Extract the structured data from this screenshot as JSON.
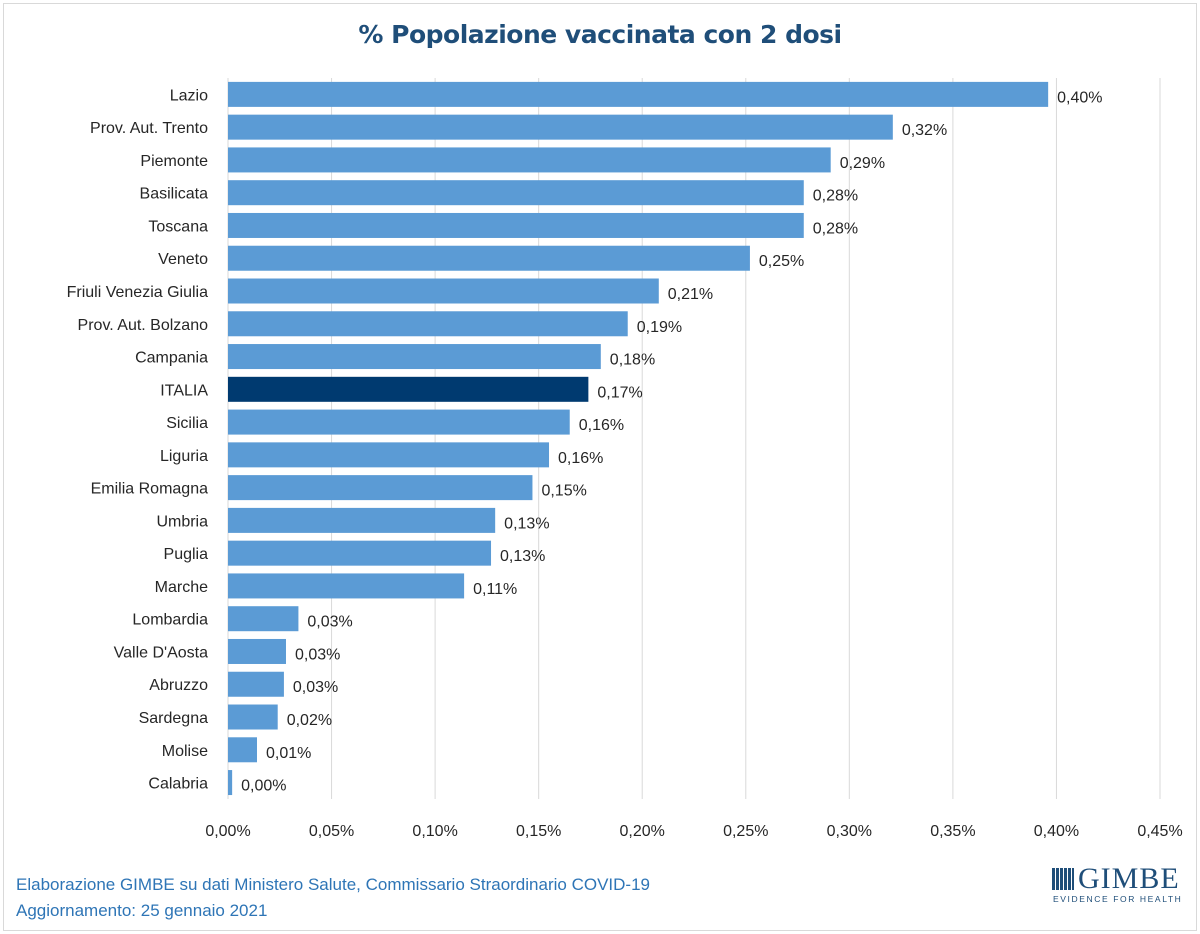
{
  "chart_data": {
    "type": "bar",
    "orientation": "horizontal",
    "title": "% Popolazione  vaccinata con 2 dosi",
    "categories": [
      "Lazio",
      "Prov. Aut. Trento",
      "Piemonte",
      "Basilicata",
      "Toscana",
      "Veneto",
      "Friuli Venezia Giulia",
      "Prov. Aut. Bolzano",
      "Campania",
      "ITALIA",
      "Sicilia",
      "Liguria",
      "Emilia Romagna",
      "Umbria",
      "Puglia",
      "Marche",
      "Lombardia",
      "Valle D'Aosta",
      "Abruzzo",
      "Sardegna",
      "Molise",
      "Calabria"
    ],
    "values": [
      0.396,
      0.321,
      0.291,
      0.278,
      0.278,
      0.252,
      0.208,
      0.193,
      0.18,
      0.174,
      0.165,
      0.155,
      0.147,
      0.129,
      0.127,
      0.114,
      0.034,
      0.028,
      0.027,
      0.024,
      0.014,
      0.002
    ],
    "data_labels": [
      "0,40%",
      "0,32%",
      "0,29%",
      "0,28%",
      "0,28%",
      "0,25%",
      "0,21%",
      "0,19%",
      "0,18%",
      "0,17%",
      "0,16%",
      "0,16%",
      "0,15%",
      "0,13%",
      "0,13%",
      "0,11%",
      "0,03%",
      "0,03%",
      "0,03%",
      "0,02%",
      "0,01%",
      "0,00%"
    ],
    "highlight_category": "ITALIA",
    "xlim": [
      0,
      0.45
    ],
    "x_ticks": [
      "0,00%",
      "0,05%",
      "0,10%",
      "0,15%",
      "0,20%",
      "0,25%",
      "0,30%",
      "0,35%",
      "0,40%",
      "0,45%"
    ],
    "grid": "vertical",
    "xlabel": "",
    "ylabel": "",
    "colors": {
      "bar": "#5b9bd5",
      "highlight": "#003a70",
      "grid": "#d9d9d9",
      "title": "#1f4e79"
    }
  },
  "footer": {
    "source": "Elaborazione GIMBE su dati Ministero Salute, Commissario Straordinario COVID-19",
    "updated": "Aggiornamento: 25 gennaio 2021"
  },
  "logo": {
    "name": "GIMBE",
    "tagline": "EVIDENCE FOR HEALTH"
  }
}
